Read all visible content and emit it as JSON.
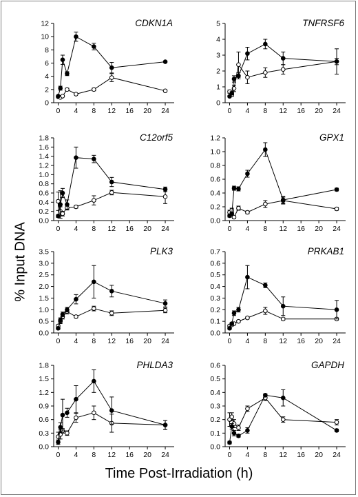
{
  "ylabel": "% Input DNA",
  "xlabel": "Time Post-Irradiation (h)",
  "chart_data": [
    {
      "type": "line",
      "title": "CDKN1A",
      "x": [
        0,
        0.5,
        1,
        2,
        4,
        8,
        12,
        24
      ],
      "xticks": [
        0,
        4,
        8,
        12,
        16,
        20,
        24
      ],
      "xlim": [
        0,
        24
      ],
      "ylim": [
        0,
        12
      ],
      "yticks": [
        0,
        2,
        4,
        6,
        8,
        10,
        12
      ],
      "ytick_labels": [
        "0",
        "2",
        "4",
        "6",
        "8",
        "10",
        "12"
      ],
      "series": [
        {
          "marker": "filled",
          "values": [
            1.0,
            2.2,
            6.5,
            4.4,
            10.0,
            8.5,
            5.3,
            6.2
          ],
          "err": [
            0.1,
            0.3,
            0.7,
            0.3,
            0.7,
            0.5,
            0.8,
            0.1
          ]
        },
        {
          "marker": "open",
          "values": [
            0.9,
            0.8,
            1.0,
            2.0,
            1.3,
            2.0,
            3.8,
            1.8
          ],
          "err": [
            0.1,
            0.1,
            0.1,
            0.2,
            0.1,
            0.2,
            0.6,
            0.1
          ]
        }
      ]
    },
    {
      "type": "line",
      "title": "TNFRSF6",
      "x": [
        0,
        0.5,
        1,
        2,
        4,
        8,
        12,
        24
      ],
      "xticks": [
        0,
        4,
        8,
        12,
        16,
        20,
        24
      ],
      "xlim": [
        0,
        24
      ],
      "ylim": [
        0,
        5
      ],
      "yticks": [
        0,
        1,
        2,
        3,
        4,
        5
      ],
      "ytick_labels": [
        "0",
        "1",
        "2",
        "3",
        "4",
        "5"
      ],
      "series": [
        {
          "marker": "filled",
          "values": [
            0.4,
            0.6,
            1.5,
            1.7,
            3.1,
            3.7,
            2.8,
            2.6
          ],
          "err": [
            0.05,
            0.1,
            0.2,
            0.2,
            0.4,
            0.3,
            0.4,
            0.2
          ]
        },
        {
          "marker": "open",
          "values": [
            0.7,
            0.5,
            0.9,
            2.4,
            1.6,
            1.9,
            2.1,
            2.6
          ],
          "err": [
            0.1,
            0.1,
            0.2,
            0.8,
            0.4,
            0.3,
            0.3,
            0.8
          ]
        }
      ]
    },
    {
      "type": "line",
      "title": "C12orf5",
      "x": [
        0,
        0.5,
        1,
        2,
        4,
        8,
        12,
        24
      ],
      "xticks": [
        0,
        4,
        8,
        12,
        16,
        20,
        24
      ],
      "xlim": [
        0,
        24
      ],
      "ylim": [
        0,
        1.8
      ],
      "yticks": [
        0,
        0.2,
        0.4,
        0.6,
        0.8,
        1.0,
        1.2,
        1.4,
        1.6,
        1.8
      ],
      "ytick_labels": [
        "0.0",
        "0.2",
        "0.4",
        "0.6",
        "0.8",
        "1.0",
        "1.2",
        "1.4",
        "1.6",
        "1.8"
      ],
      "series": [
        {
          "marker": "filled",
          "values": [
            0.1,
            0.35,
            0.6,
            0.35,
            1.37,
            1.34,
            0.84,
            0.68
          ],
          "err": [
            0.03,
            0.3,
            0.1,
            0.1,
            0.23,
            0.08,
            0.1,
            0.05
          ]
        },
        {
          "marker": "open",
          "values": [
            0.42,
            0.2,
            0.15,
            0.28,
            0.3,
            0.44,
            0.61,
            0.52
          ],
          "err": [
            0.2,
            0.1,
            0.05,
            0.05,
            0.03,
            0.1,
            0.05,
            0.15
          ]
        }
      ]
    },
    {
      "type": "line",
      "title": "GPX1",
      "x": [
        0,
        0.5,
        1,
        2,
        4,
        8,
        12,
        24
      ],
      "xticks": [
        0,
        4,
        8,
        12,
        16,
        20,
        24
      ],
      "xlim": [
        0,
        24
      ],
      "ylim": [
        0,
        1.2
      ],
      "yticks": [
        0,
        0.2,
        0.4,
        0.6,
        0.8,
        1.0,
        1.2
      ],
      "ytick_labels": [
        "0.0",
        "0.2",
        "0.4",
        "0.6",
        "0.8",
        "1.0",
        "1.2"
      ],
      "series": [
        {
          "marker": "filled",
          "values": [
            0.07,
            0.1,
            0.47,
            0.46,
            0.68,
            1.03,
            0.3,
            0.45
          ],
          "err": [
            0.02,
            0.02,
            0.03,
            0.03,
            0.05,
            0.1,
            0.05,
            0.02
          ]
        },
        {
          "marker": "open",
          "values": [
            0.12,
            0.15,
            0.05,
            0.18,
            0.12,
            0.24,
            0.29,
            0.17
          ],
          "err": [
            0.03,
            0.03,
            0.02,
            0.03,
            0.02,
            0.05,
            0.05,
            0.02
          ]
        }
      ]
    },
    {
      "type": "line",
      "title": "PLK3",
      "x": [
        0,
        0.5,
        1,
        2,
        4,
        8,
        12,
        24
      ],
      "xticks": [
        0,
        4,
        8,
        12,
        16,
        20,
        24
      ],
      "xlim": [
        0,
        24
      ],
      "ylim": [
        0,
        3.5
      ],
      "yticks": [
        0,
        0.5,
        1.0,
        1.5,
        2.0,
        2.5,
        3.0,
        3.5
      ],
      "ytick_labels": [
        "0.0",
        "0.5",
        "1.0",
        "1.5",
        "2.0",
        "2.5",
        "3.0",
        "3.5"
      ],
      "series": [
        {
          "marker": "filled",
          "values": [
            0.2,
            0.55,
            0.8,
            1.0,
            1.45,
            2.2,
            1.8,
            1.27
          ],
          "err": [
            0.05,
            0.1,
            0.1,
            0.1,
            0.2,
            0.7,
            0.25,
            0.15
          ]
        },
        {
          "marker": "open",
          "values": [
            0.3,
            0.5,
            0.7,
            0.92,
            0.7,
            1.05,
            0.85,
            0.97
          ],
          "err": [
            0.05,
            0.1,
            0.1,
            0.1,
            0.05,
            0.1,
            0.1,
            0.1
          ]
        }
      ]
    },
    {
      "type": "line",
      "title": "PRKAB1",
      "x": [
        0,
        0.5,
        1,
        2,
        4,
        8,
        12,
        24
      ],
      "xticks": [
        0,
        4,
        8,
        12,
        16,
        20,
        24
      ],
      "xlim": [
        0,
        24
      ],
      "ylim": [
        0,
        0.7
      ],
      "yticks": [
        0,
        0.1,
        0.2,
        0.3,
        0.4,
        0.5,
        0.6,
        0.7
      ],
      "ytick_labels": [
        "0.0",
        "0.1",
        "0.2",
        "0.3",
        "0.4",
        "0.5",
        "0.6",
        "0.7"
      ],
      "series": [
        {
          "marker": "filled",
          "values": [
            0.04,
            0.08,
            0.17,
            0.2,
            0.48,
            0.41,
            0.23,
            0.2
          ],
          "err": [
            0.01,
            0.01,
            0.02,
            0.02,
            0.1,
            0.02,
            0.08,
            0.08
          ]
        },
        {
          "marker": "open",
          "values": [
            0.06,
            0.07,
            0.08,
            0.1,
            0.13,
            0.19,
            0.12,
            0.12
          ],
          "err": [
            0.01,
            0.01,
            0.01,
            0.01,
            0.01,
            0.03,
            0.01,
            0.01
          ]
        }
      ]
    },
    {
      "type": "line",
      "title": "PHLDA3",
      "x": [
        0,
        0.5,
        1,
        2,
        4,
        8,
        12,
        24
      ],
      "xticks": [
        0,
        4,
        8,
        12,
        16,
        20,
        24
      ],
      "xlim": [
        0,
        24
      ],
      "ylim": [
        0,
        1.8
      ],
      "yticks": [
        0,
        0.3,
        0.6,
        0.9,
        1.2,
        1.5,
        1.8
      ],
      "ytick_labels": [
        "0.0",
        "0.3",
        "0.6",
        "0.9",
        "1.2",
        "1.5",
        "1.8"
      ],
      "series": [
        {
          "marker": "filled",
          "values": [
            0.1,
            0.43,
            0.7,
            0.75,
            1.05,
            1.45,
            0.8,
            0.48
          ],
          "err": [
            0.05,
            0.1,
            0.35,
            0.1,
            0.3,
            0.25,
            0.3,
            0.1
          ]
        },
        {
          "marker": "open",
          "values": [
            0.22,
            0.27,
            0.35,
            0.3,
            0.64,
            0.75,
            0.52,
            0.48
          ],
          "err": [
            0.1,
            0.1,
            0.05,
            0.05,
            0.1,
            0.15,
            0.2,
            0.1
          ]
        }
      ]
    },
    {
      "type": "line",
      "title": "GAPDH",
      "x": [
        0,
        0.5,
        1,
        2,
        4,
        8,
        12,
        24
      ],
      "xticks": [
        0,
        4,
        8,
        12,
        16,
        20,
        24
      ],
      "xlim": [
        0,
        24
      ],
      "ylim": [
        0,
        0.6
      ],
      "yticks": [
        0,
        0.1,
        0.2,
        0.3,
        0.4,
        0.5,
        0.6
      ],
      "ytick_labels": [
        "0.0",
        "0.1",
        "0.2",
        "0.3",
        "0.4",
        "0.5",
        "0.6"
      ],
      "series": [
        {
          "marker": "filled",
          "values": [
            0.03,
            0.15,
            0.1,
            0.08,
            0.12,
            0.38,
            0.36,
            0.12
          ],
          "err": [
            0.01,
            0.02,
            0.02,
            0.01,
            0.02,
            0.01,
            0.06,
            0.01
          ]
        },
        {
          "marker": "open",
          "values": [
            0.2,
            0.22,
            0.17,
            0.14,
            0.28,
            0.36,
            0.2,
            0.18
          ],
          "err": [
            0.05,
            0.03,
            0.03,
            0.02,
            0.02,
            0.02,
            0.02,
            0.02
          ]
        }
      ]
    }
  ]
}
